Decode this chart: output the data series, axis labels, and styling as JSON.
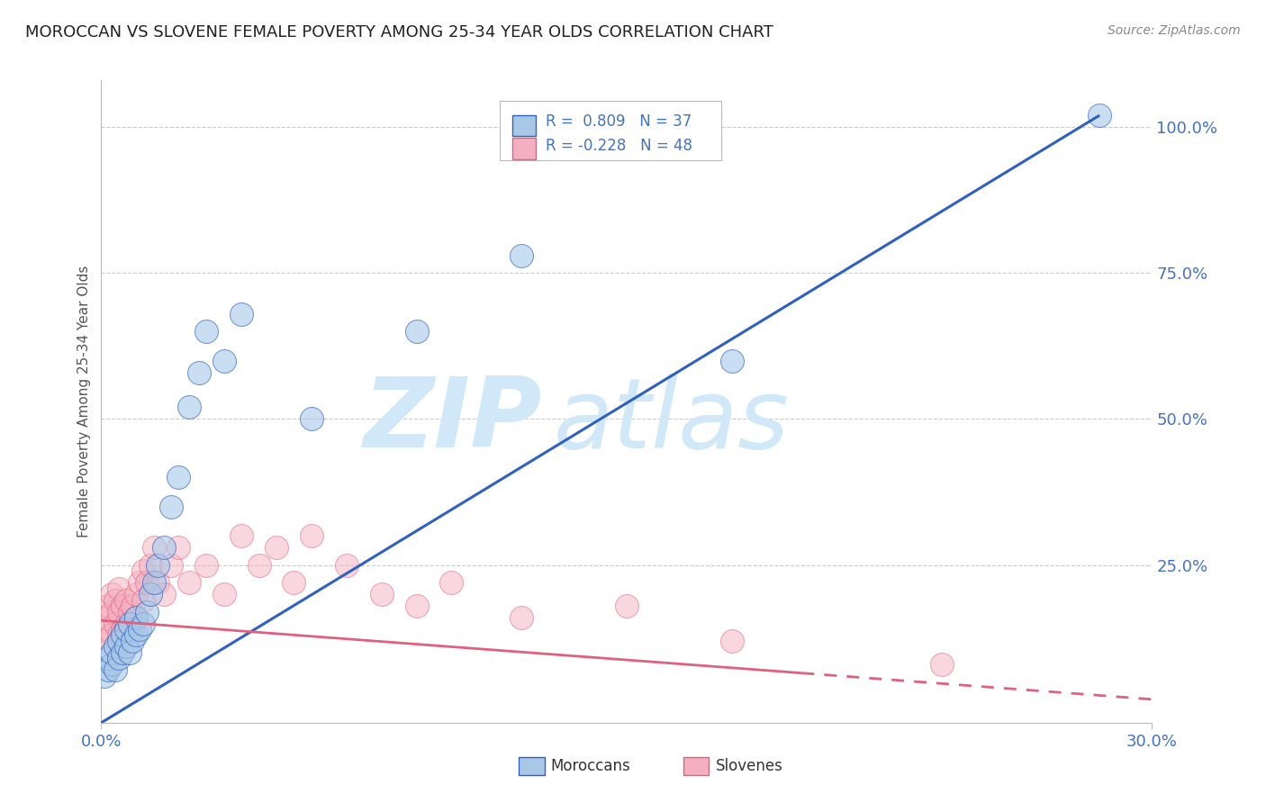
{
  "title": "MOROCCAN VS SLOVENE FEMALE POVERTY AMONG 25-34 YEAR OLDS CORRELATION CHART",
  "source_text": "Source: ZipAtlas.com",
  "ylabel_label": "Female Poverty Among 25-34 Year Olds",
  "xmin": 0.0,
  "xmax": 0.3,
  "ymin": -0.02,
  "ymax": 1.08,
  "moroccan_color": "#A8C8E8",
  "slovene_color": "#F4B0C0",
  "moroccan_line_color": "#3060C0",
  "slovene_line_color": "#E06080",
  "moroccan_R": 0.809,
  "moroccan_N": 37,
  "slovene_R": -0.228,
  "slovene_N": 48,
  "watermark_zip": "ZIP",
  "watermark_atlas": "atlas",
  "watermark_color": "#D0E8F8",
  "legend_moroccan": "Moroccans",
  "legend_slovene": "Slovenes",
  "moroccan_line_x0": 0.0,
  "moroccan_line_y0": -0.02,
  "moroccan_line_x1": 0.285,
  "moroccan_line_y1": 1.02,
  "slovene_line_x0": 0.0,
  "slovene_line_y0": 0.155,
  "slovene_line_x1": 0.3,
  "slovene_line_y1": 0.02,
  "moroccan_scatter_x": [
    0.001,
    0.002,
    0.002,
    0.003,
    0.003,
    0.004,
    0.004,
    0.005,
    0.005,
    0.006,
    0.006,
    0.007,
    0.007,
    0.008,
    0.008,
    0.009,
    0.01,
    0.01,
    0.011,
    0.012,
    0.013,
    0.014,
    0.015,
    0.016,
    0.018,
    0.02,
    0.022,
    0.025,
    0.028,
    0.03,
    0.035,
    0.04,
    0.06,
    0.09,
    0.12,
    0.18,
    0.285
  ],
  "moroccan_scatter_y": [
    0.06,
    0.07,
    0.09,
    0.08,
    0.1,
    0.07,
    0.11,
    0.09,
    0.12,
    0.1,
    0.13,
    0.11,
    0.14,
    0.1,
    0.15,
    0.12,
    0.13,
    0.16,
    0.14,
    0.15,
    0.17,
    0.2,
    0.22,
    0.25,
    0.28,
    0.35,
    0.4,
    0.52,
    0.58,
    0.65,
    0.6,
    0.68,
    0.5,
    0.65,
    0.78,
    0.6,
    1.02
  ],
  "slovene_scatter_x": [
    0.001,
    0.001,
    0.002,
    0.002,
    0.003,
    0.003,
    0.003,
    0.004,
    0.004,
    0.005,
    0.005,
    0.005,
    0.006,
    0.006,
    0.007,
    0.007,
    0.008,
    0.008,
    0.009,
    0.009,
    0.01,
    0.01,
    0.011,
    0.012,
    0.012,
    0.013,
    0.014,
    0.015,
    0.016,
    0.018,
    0.02,
    0.022,
    0.025,
    0.03,
    0.035,
    0.04,
    0.045,
    0.05,
    0.055,
    0.06,
    0.07,
    0.08,
    0.09,
    0.1,
    0.12,
    0.15,
    0.18,
    0.24
  ],
  "slovene_scatter_y": [
    0.12,
    0.16,
    0.14,
    0.18,
    0.13,
    0.17,
    0.2,
    0.15,
    0.19,
    0.13,
    0.17,
    0.21,
    0.14,
    0.18,
    0.15,
    0.19,
    0.13,
    0.17,
    0.14,
    0.18,
    0.16,
    0.2,
    0.22,
    0.19,
    0.24,
    0.22,
    0.25,
    0.28,
    0.22,
    0.2,
    0.25,
    0.28,
    0.22,
    0.25,
    0.2,
    0.3,
    0.25,
    0.28,
    0.22,
    0.3,
    0.25,
    0.2,
    0.18,
    0.22,
    0.16,
    0.18,
    0.12,
    0.08
  ]
}
